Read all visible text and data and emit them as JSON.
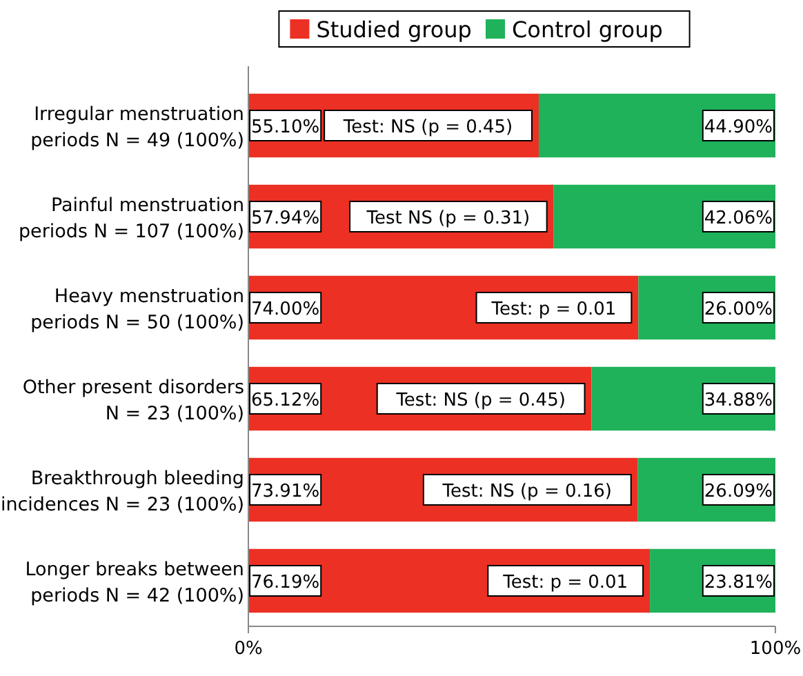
{
  "chart_data": {
    "type": "bar",
    "orientation": "horizontal",
    "stacked": true,
    "categories": [
      "Irregular menstruation\nperiods N = 49 (100%)",
      "Painful menstruation\nperiods N = 107 (100%)",
      "Heavy menstruation\nperiods N = 50 (100%)",
      "Other present disorders\nN = 23 (100%)",
      "Breakthrough bleeding\nincidences N = 23 (100%)",
      "Longer breaks between\nperiods N = 42 (100%)"
    ],
    "series": [
      {
        "name": "Studied group",
        "color": "#ec3024",
        "values": [
          55.1,
          57.94,
          74.0,
          65.12,
          73.91,
          76.19
        ],
        "value_labels": [
          "55.10%",
          "57.94%",
          "74.00%",
          "65.12%",
          "73.91%",
          "76.19%"
        ]
      },
      {
        "name": "Control group",
        "color": "#1fb25a",
        "values": [
          44.9,
          42.06,
          26.0,
          34.88,
          26.09,
          23.81
        ],
        "value_labels": [
          "44.90%",
          "42.06%",
          "26.00%",
          "34.88%",
          "26.09%",
          "23.81%"
        ]
      }
    ],
    "xlim": [
      0,
      100
    ],
    "xticks": [
      {
        "value": 0,
        "label": "0%"
      },
      {
        "value": 100,
        "label": "100%"
      }
    ],
    "legend": "top",
    "grid": false,
    "annotations": [
      "Test: NS (p = 0.45)",
      "Test NS (p = 0.31)",
      "Test: p = 0.01",
      "Test: NS (p = 0.45)",
      "Test: NS (p = 0.16)",
      "Test: p = 0.01"
    ]
  }
}
